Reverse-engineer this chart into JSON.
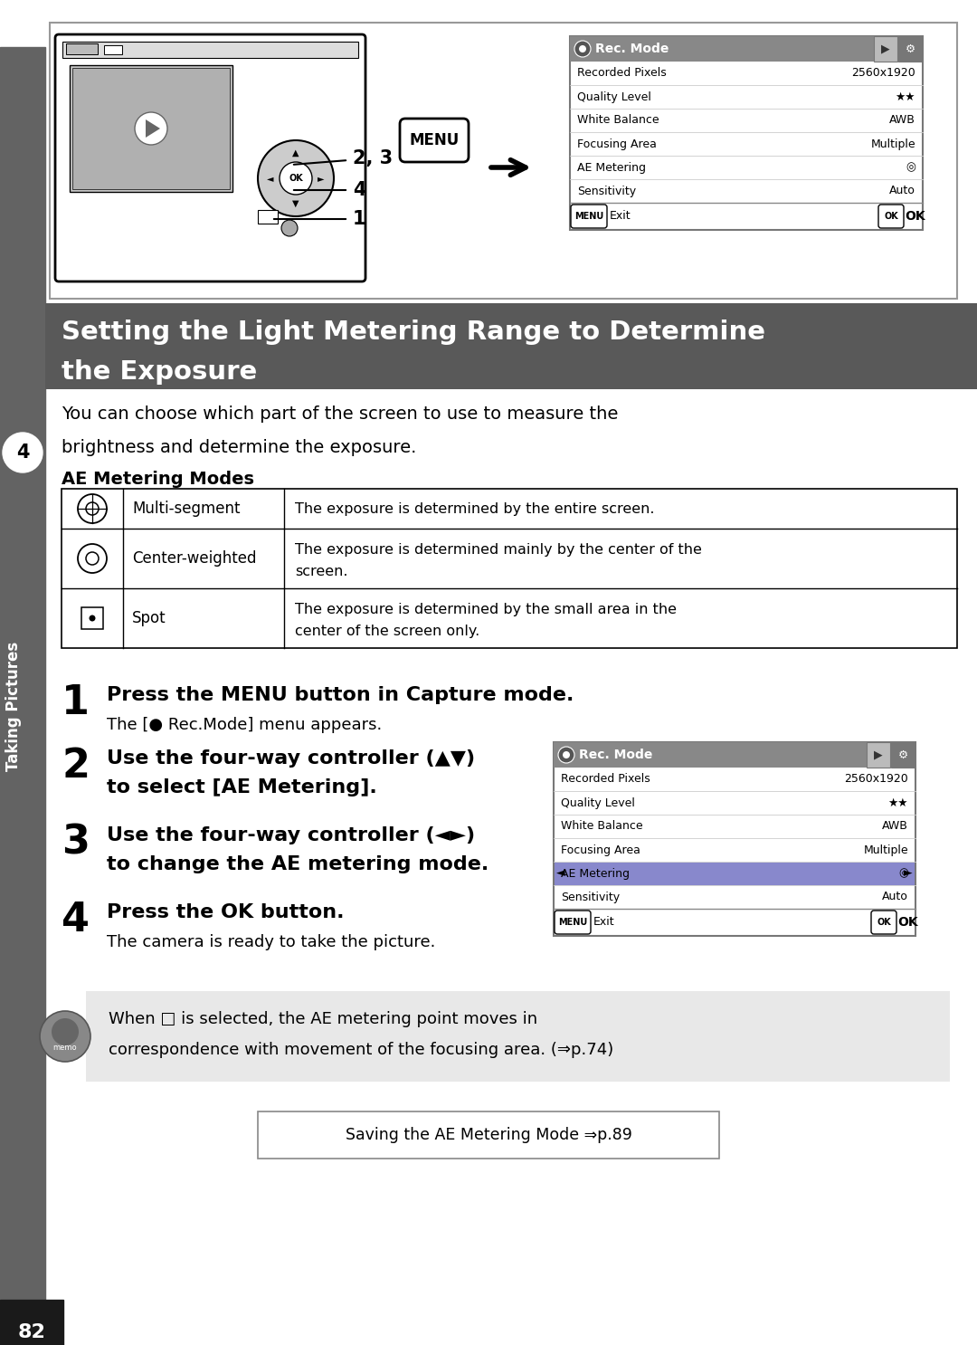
{
  "page_bg": "#ffffff",
  "sidebar_bg": "#636363",
  "sidebar_text": "Taking Pictures",
  "sidebar_num": "4",
  "header_bg": "#595959",
  "intro_line1": "You can choose which part of the screen to use to measure the",
  "intro_line2": "brightness and determine the exposure.",
  "ae_heading": "AE Metering Modes",
  "table_rows": [
    {
      "mode_name": "Multi-segment",
      "description": "The exposure is determined by the entire screen."
    },
    {
      "mode_name": "Center-weighted",
      "description1": "The exposure is determined mainly by the center of the",
      "description2": "screen."
    },
    {
      "mode_name": "Spot",
      "description1": "The exposure is determined by the small area in the",
      "description2": "center of the screen only."
    }
  ],
  "step1_bold": "Press the MENU button in Capture mode.",
  "step1_normal": "The [● Rec.Mode] menu appears.",
  "step2_bold1": "Use the four-way controller (▲▼)",
  "step2_bold2": "to select [AE Metering].",
  "step3_bold1": "Use the four-way controller (◄►)",
  "step3_bold2": "to change the AE metering mode.",
  "step4_bold": "Press the OK button.",
  "step4_normal": "The camera is ready to take the picture.",
  "memo_line1": "When □ is selected, the AE metering point moves in",
  "memo_line2": "correspondence with movement of the focusing area. (⇒p.74)",
  "memo_bg": "#e8e8e8",
  "save_text": "Saving the AE Metering Mode ⇒p.89",
  "page_num": "82",
  "page_num_bg": "#1a1a1a",
  "rec_items": [
    [
      "Recorded Pixels",
      "2560x1920"
    ],
    [
      "Quality Level",
      "★★"
    ],
    [
      "White Balance",
      "AWB"
    ],
    [
      "Focusing Area",
      "Multiple"
    ],
    [
      "AE Metering",
      "◎"
    ],
    [
      "Sensitivity",
      "Auto"
    ]
  ]
}
